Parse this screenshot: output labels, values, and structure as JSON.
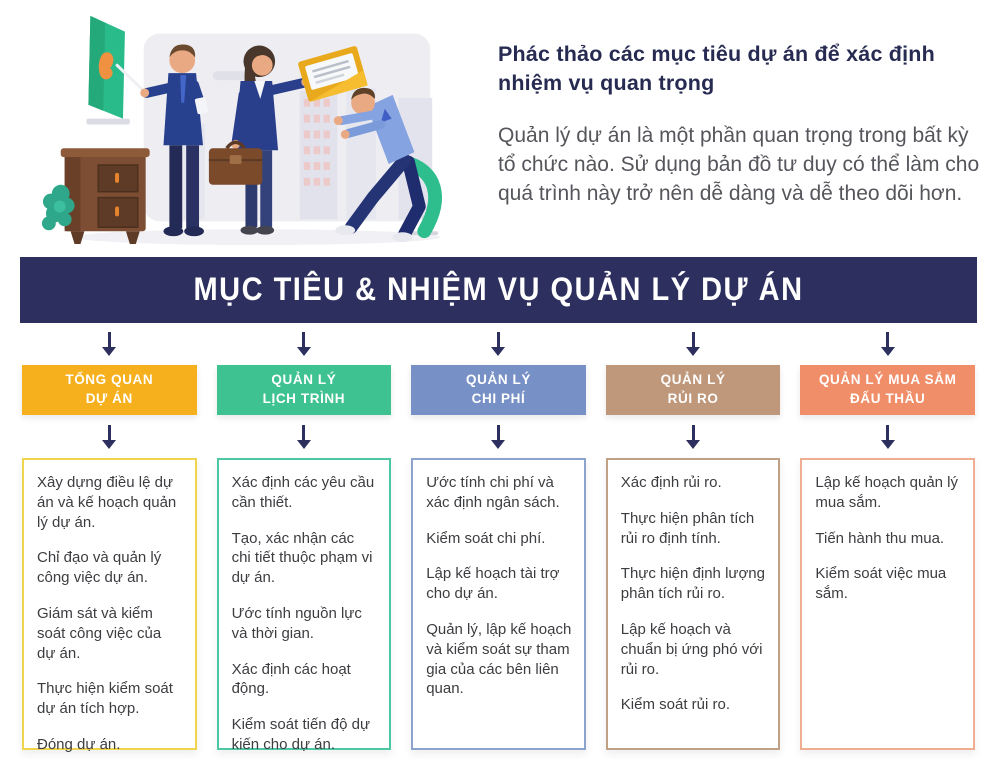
{
  "intro": {
    "heading": "Phác thảo các mục tiêu dự án để xác định nhiệm vụ quan trọng",
    "paragraph": "Quản lý dự án là một phần quan trọng trong bất kỳ tổ chức nào. Sử dụng bản đồ tư duy có thể làm cho quá trình này trở nên dễ dàng và dễ theo dõi hơn."
  },
  "banner": {
    "title": "MỤC TIÊU & NHIỆM VỤ QUẢN LÝ DỰ ÁN"
  },
  "colors": {
    "banner_bg": "#2d2f5e",
    "arrow": "#2d2f5e",
    "heading_text": "#272b52",
    "paragraph_text": "#55565b",
    "task_text": "#3c3d40"
  },
  "icons": [
    "down-arrow-icon",
    "presentation-board-graphic",
    "office-cabinet-graphic",
    "plant-graphic",
    "presenter-person-graphic",
    "businesswoman-graphic",
    "yellow-folder-graphic",
    "briefcase-graphic",
    "seated-man-graphic",
    "office-chair-graphic",
    "city-skyline-background"
  ],
  "columns": [
    {
      "id": "tong-quan-du-an",
      "label_line1": "TỔNG QUAN",
      "label_line2": "DỰ ÁN",
      "color": "#f6b01e",
      "border_color": "#f0d44e",
      "tasks": [
        "Xây dựng điều lệ dự án và kế hoạch quản lý dự án.",
        "Chỉ đạo và quản lý công việc dự án.",
        "Giám sát và kiểm soát công việc của dự án.",
        "Thực hiện kiểm soát dự án tích hợp.",
        "Đóng dự án."
      ]
    },
    {
      "id": "quan-ly-lich-trinh",
      "label_line1": "QUẢN LÝ",
      "label_line2": "LỊCH TRÌNH",
      "color": "#3fc292",
      "border_color": "#4ec7a5",
      "tasks": [
        "Xác định các yêu cầu cần thiết.",
        "Tạo, xác nhận các chi tiết thuộc phạm vi dự án.",
        "Ước tính nguồn lực và thời gian.",
        "Xác định các hoạt động.",
        "Kiểm soát tiến độ dự kiến cho dự án."
      ]
    },
    {
      "id": "quan-ly-chi-phi",
      "label_line1": "QUẢN LÝ",
      "label_line2": "CHI PHÍ",
      "color": "#7790c6",
      "border_color": "#8ba3cd",
      "tasks": [
        "Ước tính chi phí và xác định ngân sách.",
        "Kiểm soát chi phí.",
        "Lập kế hoạch tài trợ cho dự án.",
        "Quản lý, lập kế hoạch và kiểm soát sự tham gia của các bên liên quan."
      ]
    },
    {
      "id": "quan-ly-rui-ro",
      "label_line1": "QUẢN LÝ",
      "label_line2": "RỦI RO",
      "color": "#bf977a",
      "border_color": "#c0a185",
      "tasks": [
        "Xác định rủi ro.",
        "Thực hiện phân tích rủi ro định tính.",
        "Thực hiện định lượng\nphân tích rủi ro.",
        "Lập kế hoạch và chuẩn bị ứng phó với rủi ro.",
        "Kiểm soát rủi ro."
      ]
    },
    {
      "id": "quan-ly-mua-sam-dau-thau",
      "label_line1": "QUẢN LÝ MUA SẮM",
      "label_line2": "ĐẤU THẦU",
      "color": "#f08e69",
      "border_color": "#efae90",
      "tasks": [
        "Lập kế hoạch quản lý mua sắm.",
        "Tiến hành thu mua.",
        "Kiểm soát việc mua sắm."
      ]
    }
  ]
}
